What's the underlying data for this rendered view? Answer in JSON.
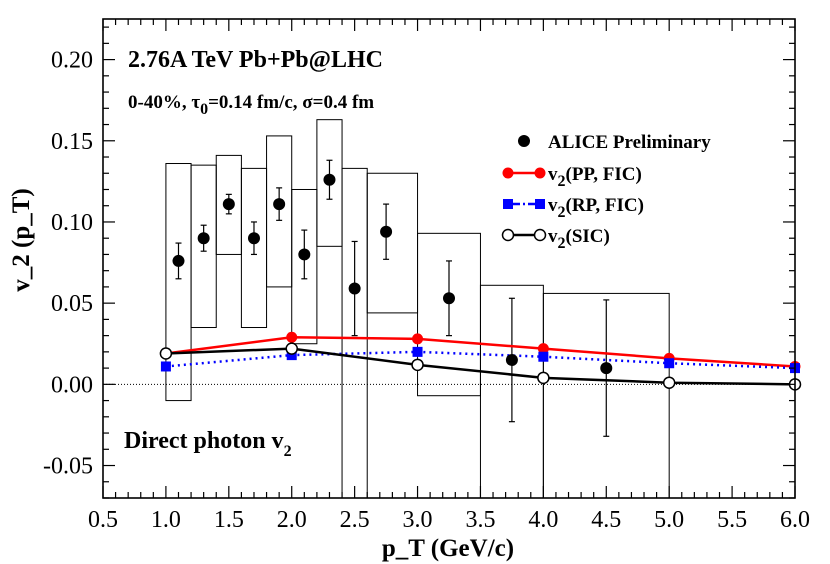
{
  "chart_data": {
    "type": "scatter",
    "title": "",
    "xlabel": "p_T (GeV/c)",
    "ylabel": "v_2 (p_T)",
    "xlim": [
      0.5,
      6.0
    ],
    "ylim": [
      -0.07,
      0.225
    ],
    "x_ticks": [
      "0.5",
      "1.0",
      "1.5",
      "2.0",
      "2.5",
      "3.0",
      "3.5",
      "4.0",
      "4.5",
      "5.0",
      "5.5",
      "6.0"
    ],
    "y_ticks": [
      "-0.05",
      "0.00",
      "0.05",
      "0.10",
      "0.15",
      "0.20"
    ],
    "grid": false,
    "legend_position": "top-right",
    "annotations": {
      "energy": "2.76A TeV Pb+Pb@LHC",
      "params": {
        "cent": "0-40%, ",
        "tau": "τ",
        "tau_sub": "0",
        "tau_rest": "=0.14 fm/c, σ=0.4 fm"
      },
      "label_main": "Direct photon v",
      "label_sub": "2"
    },
    "data_series": {
      "name": "ALICE Preliminary",
      "color": "#000000",
      "points": [
        {
          "x": 1.1,
          "y": 0.076,
          "err": 0.011,
          "sys_lo": -0.01,
          "sys_hi": 0.136,
          "bx0": 1.0,
          "bx1": 1.2
        },
        {
          "x": 1.3,
          "y": 0.09,
          "err": 0.008,
          "sys_lo": 0.035,
          "sys_hi": 0.135,
          "bx0": 1.2,
          "bx1": 1.4
        },
        {
          "x": 1.5,
          "y": 0.111,
          "err": 0.006,
          "sys_lo": 0.08,
          "sys_hi": 0.141,
          "bx0": 1.4,
          "bx1": 1.6
        },
        {
          "x": 1.7,
          "y": 0.09,
          "err": 0.01,
          "sys_lo": 0.035,
          "sys_hi": 0.133,
          "bx0": 1.6,
          "bx1": 1.8
        },
        {
          "x": 1.9,
          "y": 0.111,
          "err": 0.01,
          "sys_lo": 0.06,
          "sys_hi": 0.153,
          "bx0": 1.8,
          "bx1": 2.0
        },
        {
          "x": 2.1,
          "y": 0.08,
          "err": 0.015,
          "sys_lo": 0.025,
          "sys_hi": 0.12,
          "bx0": 2.0,
          "bx1": 2.2
        },
        {
          "x": 2.3,
          "y": 0.126,
          "err": 0.012,
          "sys_lo": 0.085,
          "sys_hi": 0.163,
          "bx0": 2.2,
          "bx1": 2.4
        },
        {
          "x": 2.5,
          "y": 0.059,
          "err": 0.029,
          "sys_lo": -0.07,
          "sys_hi": 0.133,
          "bx0": 2.4,
          "bx1": 2.6
        },
        {
          "x": 2.75,
          "y": 0.094,
          "err": 0.017,
          "sys_lo": 0.044,
          "sys_hi": 0.13,
          "bx0": 2.6,
          "bx1": 3.0
        },
        {
          "x": 3.25,
          "y": 0.053,
          "err": 0.023,
          "sys_lo": -0.007,
          "sys_hi": 0.093,
          "bx0": 3.0,
          "bx1": 3.5
        },
        {
          "x": 3.75,
          "y": 0.015,
          "err": 0.038,
          "sys_lo": -0.07,
          "sys_hi": 0.061,
          "bx0": 3.5,
          "bx1": 4.0
        },
        {
          "x": 4.5,
          "y": 0.01,
          "err": 0.042,
          "sys_lo": -0.07,
          "sys_hi": 0.056,
          "bx0": 4.0,
          "bx1": 5.0
        }
      ]
    },
    "series": [
      {
        "name": "v2(PP, FIC)",
        "label_main": "v",
        "label_sub": "2",
        "label_rest": "(PP, FIC)",
        "color": "#ff0000",
        "line": "solid",
        "marker": "filled-circle",
        "x": [
          1.0,
          2.0,
          3.0,
          4.0,
          5.0,
          6.0
        ],
        "y": [
          0.019,
          0.029,
          0.028,
          0.022,
          0.016,
          0.011
        ]
      },
      {
        "name": "v2(RP, FIC)",
        "label_main": "v",
        "label_sub": "2",
        "label_rest": "(RP, FIC)",
        "color": "#0000ff",
        "line": "dotted",
        "marker": "filled-square",
        "x": [
          1.0,
          2.0,
          3.0,
          4.0,
          5.0,
          6.0
        ],
        "y": [
          0.011,
          0.018,
          0.02,
          0.017,
          0.013,
          0.01
        ]
      },
      {
        "name": "v2(SIC)",
        "label_main": "v",
        "label_sub": "2",
        "label_rest": "(SIC)",
        "color": "#000000",
        "line": "solid",
        "marker": "open-circle",
        "x": [
          1.0,
          2.0,
          3.0,
          4.0,
          5.0,
          6.0
        ],
        "y": [
          0.019,
          0.022,
          0.012,
          0.004,
          0.001,
          0.0
        ]
      }
    ]
  }
}
